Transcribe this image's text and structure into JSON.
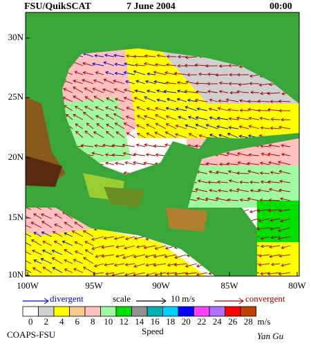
{
  "header": {
    "source": "FSU/QuikSCAT",
    "date": "7 June 2004",
    "time": "00:00"
  },
  "map": {
    "lat_labels": [
      "30N",
      "25N",
      "20N",
      "15N",
      "10N"
    ],
    "lon_labels": [
      "100W",
      "95W",
      "90W",
      "85W",
      "80W"
    ]
  },
  "legend": {
    "divergent": "divergent",
    "divergent_color": "#0000c8",
    "scale": "scale",
    "scale_value": "10 m/s",
    "convergent": "convergent",
    "convergent_color": "#a00000"
  },
  "colorbar": {
    "ticks": [
      0,
      2,
      4,
      6,
      8,
      10,
      12,
      14,
      16,
      18,
      20,
      22,
      24,
      26,
      28
    ],
    "colors": [
      "#ffffff",
      "#d0d0d0",
      "#ffff00",
      "#f8c890",
      "#ffc0c0",
      "#a0f8a0",
      "#00e000",
      "#909090",
      "#00b0b0",
      "#00d0ff",
      "#0000ff",
      "#ff40ff",
      "#b070ff",
      "#ff0000",
      "#c04000"
    ],
    "unit": "m/s",
    "title": "Speed"
  },
  "footer": {
    "org": "COAPS-FSU",
    "author": "Yan Gu"
  }
}
